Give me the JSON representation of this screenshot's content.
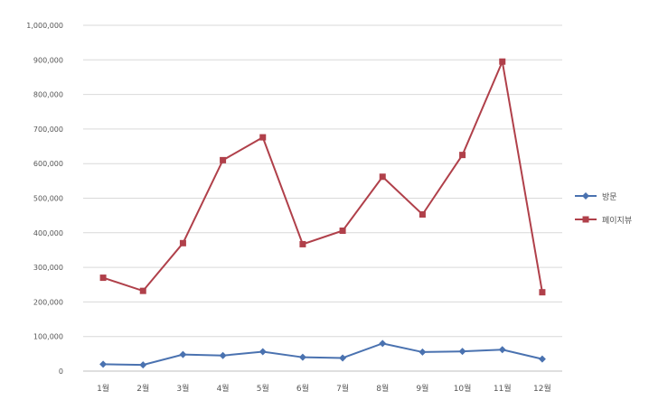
{
  "chart_data": {
    "type": "line",
    "categories": [
      "1월",
      "2월",
      "3월",
      "4월",
      "5월",
      "6월",
      "7월",
      "8월",
      "9월",
      "10월",
      "11월",
      "12월"
    ],
    "ylim": [
      0,
      1000000
    ],
    "y_ticks": [
      0,
      100000,
      200000,
      300000,
      400000,
      500000,
      600000,
      700000,
      800000,
      900000,
      1000000
    ],
    "y_tick_labels": [
      "0",
      "100,000",
      "200,000",
      "300,000",
      "400,000",
      "500,000",
      "600,000",
      "700,000",
      "800,000",
      "900,000",
      "1,000,000"
    ],
    "grid": true,
    "legend_position": "right",
    "series": [
      {
        "name": "방문",
        "color": "#4a72b0",
        "marker": "diamond",
        "values": [
          20000,
          18000,
          48000,
          45000,
          56000,
          40000,
          38000,
          80000,
          55000,
          57000,
          62000,
          35000
        ]
      },
      {
        "name": "페이지뷰",
        "color": "#b0404a",
        "marker": "square",
        "values": [
          270000,
          232000,
          370000,
          610000,
          676000,
          367000,
          406000,
          562000,
          453000,
          625000,
          895000,
          228000
        ]
      }
    ]
  }
}
